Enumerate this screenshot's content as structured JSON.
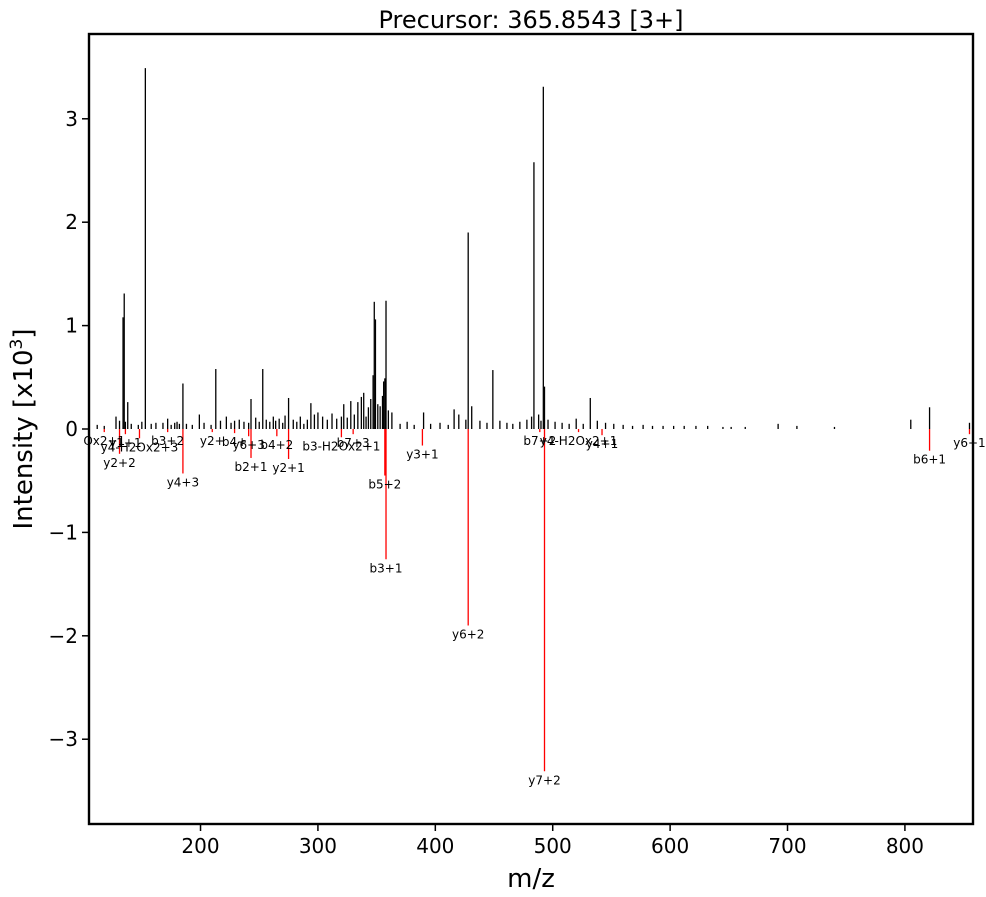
{
  "chart_data": {
    "type": "bar",
    "title": "Precursor: 365.8543 [3+]",
    "xlabel": "m/z",
    "ylabel_main": "Intensity [x10",
    "ylabel_sup": "3",
    "ylabel_end": "]",
    "xlim": [
      105,
      858
    ],
    "ylim": [
      -3.82,
      3.82
    ],
    "xticks": [
      200,
      300,
      400,
      500,
      600,
      700,
      800
    ],
    "xtick_labels": [
      "200",
      "300",
      "400",
      "500",
      "600",
      "700",
      "800"
    ],
    "yticks": [
      -3,
      -2,
      -1,
      0,
      1,
      2,
      3
    ],
    "ytick_labels": [
      "−3",
      "−2",
      "−1",
      "0",
      "1",
      "2",
      "3"
    ],
    "grid": false,
    "colors": {
      "experimental": "#000000",
      "annotated": "#ff0000",
      "frame": "#000000"
    },
    "experimental_peaks": {
      "mz": [
        112,
        118,
        128,
        131,
        134,
        135,
        136,
        138,
        141,
        147,
        150,
        153,
        158,
        162,
        168,
        172,
        175,
        178,
        180,
        182,
        185,
        188,
        193,
        199,
        203,
        209,
        213,
        217,
        222,
        226,
        229,
        233,
        237,
        241,
        243,
        247,
        250,
        253,
        256,
        259,
        262,
        264,
        267,
        270,
        272,
        275,
        279,
        282,
        285,
        288,
        291,
        294,
        297,
        300,
        304,
        308,
        312,
        316,
        320,
        322,
        325,
        328,
        331,
        334,
        337,
        339,
        341,
        343,
        345,
        347,
        348,
        349,
        351,
        353,
        355,
        356,
        357,
        358,
        360,
        363,
        370,
        376,
        382,
        390,
        396,
        404,
        411,
        416,
        420,
        426,
        428,
        431,
        438,
        444,
        449,
        455,
        461,
        466,
        472,
        478,
        482,
        484,
        488,
        490,
        492,
        493,
        496,
        502,
        508,
        514,
        520,
        526,
        532,
        538,
        545,
        552,
        560,
        568,
        577,
        585,
        594,
        603,
        612,
        622,
        632,
        645,
        652,
        664,
        692,
        708,
        740,
        805,
        821,
        855
      ],
      "intensity": [
        0.04,
        0.03,
        0.12,
        0.08,
        1.08,
        1.31,
        0.07,
        0.26,
        0.05,
        0.04,
        0.07,
        3.49,
        0.05,
        0.06,
        0.06,
        0.1,
        0.04,
        0.06,
        0.07,
        0.05,
        0.44,
        0.05,
        0.04,
        0.14,
        0.06,
        0.04,
        0.58,
        0.08,
        0.12,
        0.06,
        0.08,
        0.09,
        0.07,
        0.06,
        0.29,
        0.11,
        0.07,
        0.58,
        0.09,
        0.07,
        0.12,
        0.08,
        0.1,
        0.06,
        0.13,
        0.3,
        0.09,
        0.07,
        0.12,
        0.05,
        0.09,
        0.25,
        0.14,
        0.16,
        0.12,
        0.09,
        0.15,
        0.1,
        0.12,
        0.24,
        0.11,
        0.27,
        0.14,
        0.26,
        0.31,
        0.35,
        0.12,
        0.21,
        0.29,
        0.52,
        1.23,
        1.06,
        0.24,
        0.22,
        0.32,
        0.46,
        0.49,
        1.24,
        0.18,
        0.16,
        0.05,
        0.07,
        0.04,
        0.16,
        0.05,
        0.06,
        0.04,
        0.19,
        0.14,
        0.09,
        1.9,
        0.22,
        0.08,
        0.06,
        0.57,
        0.08,
        0.06,
        0.05,
        0.07,
        0.09,
        0.12,
        2.58,
        0.14,
        0.08,
        3.31,
        0.41,
        0.09,
        0.07,
        0.06,
        0.05,
        0.1,
        0.05,
        0.3,
        0.08,
        0.06,
        0.05,
        0.04,
        0.03,
        0.04,
        0.03,
        0.03,
        0.03,
        0.03,
        0.03,
        0.03,
        0.02,
        0.02,
        0.02,
        0.05,
        0.03,
        0.02,
        0.09,
        0.21,
        0.06
      ]
    },
    "annotated_peaks": [
      {
        "label": "Ox2+1",
        "mz": 118,
        "intensity": -0.03
      },
      {
        "label": "y1+1",
        "mz": 136,
        "intensity": -0.05
      },
      {
        "label": "y2+2",
        "mz": 131,
        "intensity": -0.24
      },
      {
        "label": "y4-H2Ox2+3",
        "mz": 148,
        "intensity": -0.09
      },
      {
        "label": "b3+2",
        "mz": 172,
        "intensity": -0.03
      },
      {
        "label": "y4+3",
        "mz": 185,
        "intensity": -0.43
      },
      {
        "label": "y2+",
        "mz": 210,
        "intensity": -0.03
      },
      {
        "label": "b4+",
        "mz": 229,
        "intensity": -0.04
      },
      {
        "label": "y6+3",
        "mz": 241,
        "intensity": -0.07
      },
      {
        "label": "b2+1",
        "mz": 243,
        "intensity": -0.28
      },
      {
        "label": "b4+2",
        "mz": 265,
        "intensity": -0.07
      },
      {
        "label": "y2+1",
        "mz": 275,
        "intensity": -0.29
      },
      {
        "label": "b3-H2Ox2+1",
        "mz": 320,
        "intensity": -0.08
      },
      {
        "label": "b7+3",
        "mz": 330,
        "intensity": -0.05
      },
      {
        "label": "b5+2",
        "mz": 357,
        "intensity": -0.45
      },
      {
        "label": "b3+1",
        "mz": 358,
        "intensity": -1.26
      },
      {
        "label": "y3+1",
        "mz": 389,
        "intensity": -0.16
      },
      {
        "label": "y6+2",
        "mz": 428,
        "intensity": -1.9
      },
      {
        "label": "b7+2",
        "mz": 489,
        "intensity": -0.03
      },
      {
        "label": "y4-H2Ox2+1",
        "mz": 522,
        "intensity": -0.03
      },
      {
        "label": "y4+1",
        "mz": 542,
        "intensity": -0.06
      },
      {
        "label": "y7+2",
        "mz": 493,
        "intensity": -3.31
      },
      {
        "label": "b6+1",
        "mz": 821,
        "intensity": -0.21
      },
      {
        "label": "y6+1",
        "mz": 855,
        "intensity": -0.05
      }
    ]
  }
}
